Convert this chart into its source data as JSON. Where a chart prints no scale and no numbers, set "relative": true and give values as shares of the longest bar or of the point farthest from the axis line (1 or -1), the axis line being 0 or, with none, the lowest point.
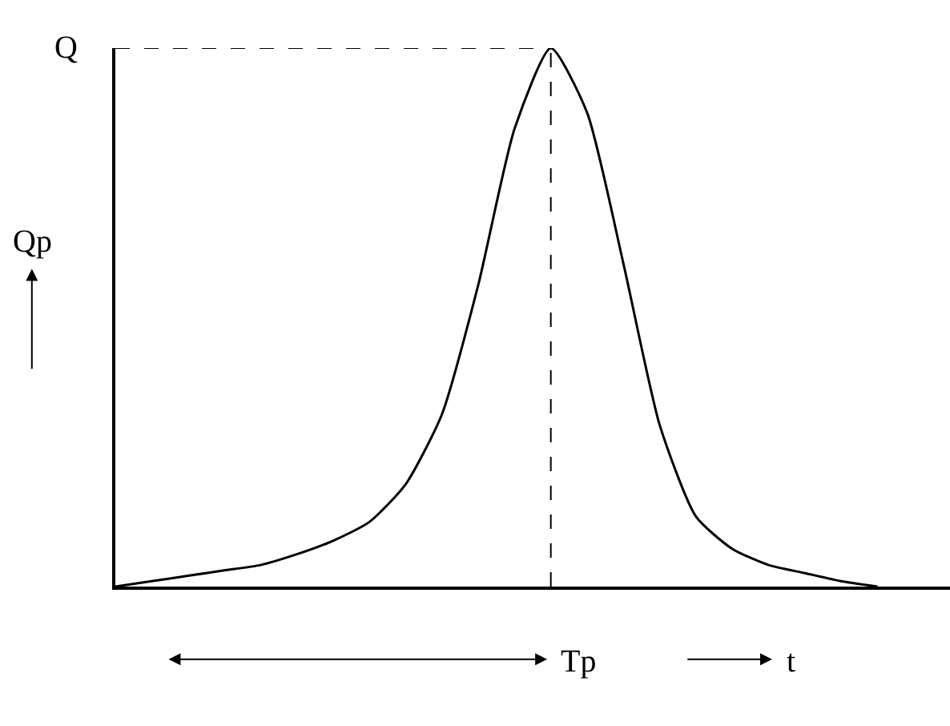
{
  "chart_data": {
    "type": "line",
    "relative": true,
    "ylabel": "Qp",
    "xlabel": "t",
    "categories": [
      null,
      null,
      null,
      null,
      null,
      null,
      null,
      null,
      null,
      null,
      null,
      null,
      null,
      null,
      null,
      null,
      null,
      null,
      null,
      null,
      null,
      null,
      null,
      null
    ],
    "series": [
      {
        "color": "#000000",
        "values": [
          0,
          0.01,
          0.02,
          0.03,
          0.04,
          0.06,
          0.085,
          0.12,
          0.19,
          0.32,
          0.56,
          0.85,
          1,
          0.88,
          0.6,
          0.3,
          0.13,
          0.07,
          0.04,
          0.025,
          0.01,
          0,
          null,
          null
        ]
      }
    ],
    "ref_lines": [
      {
        "axis": "y",
        "value": 1,
        "label": "Q",
        "line_style": "dashed",
        "color": "#000000"
      }
    ],
    "annotations": [
      "Tp"
    ],
    "legend": false,
    "marker": "none",
    "line_style": "solid"
  }
}
